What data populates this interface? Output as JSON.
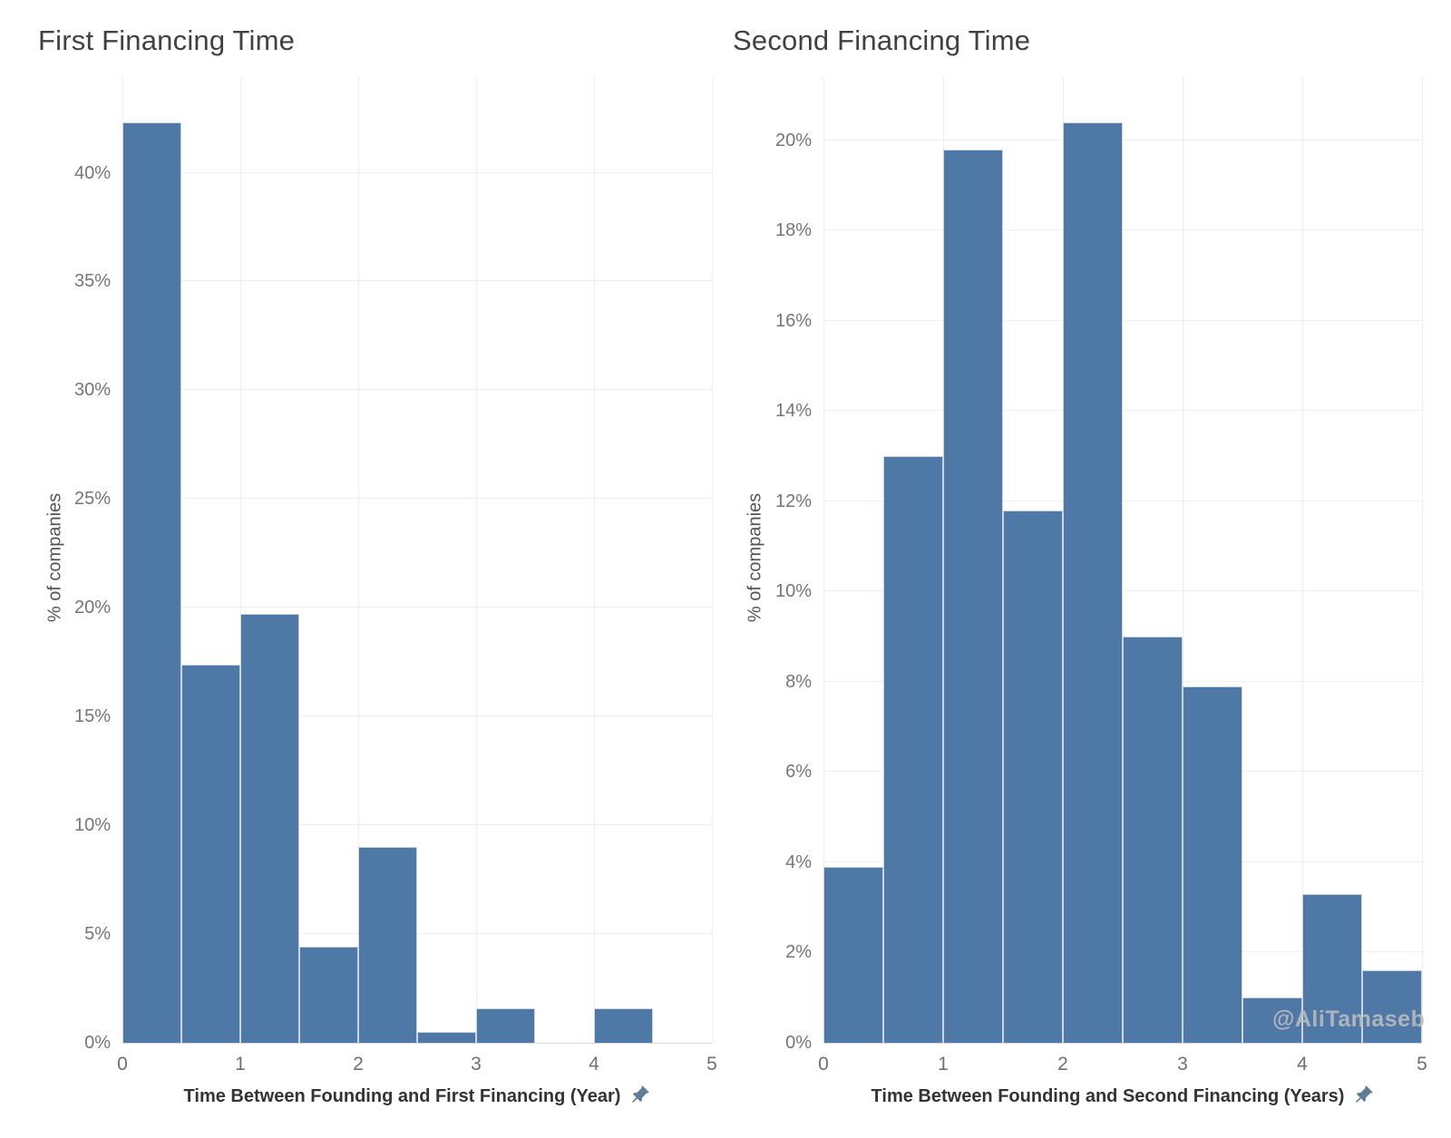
{
  "page_background": "#ffffff",
  "watermark": "@AliTamaseb",
  "colors": {
    "bar_fill": "#4e79a7",
    "bar_border": "#ccd5de",
    "gridline": "#efefef",
    "axis_line": "#d9d9d9",
    "title_text": "#414141",
    "tick_text": "#767676",
    "axis_title_text": "#333333",
    "watermark_text": "#bdbdbd",
    "pin_icon": "#5f7c99"
  },
  "chart_data": [
    {
      "type": "bar",
      "title": "First Financing Time",
      "xlabel": "Time Between Founding and First Financing (Year)",
      "ylabel": "% of companies",
      "bin_size_years": 0.5,
      "bin_edges": [
        0,
        0.5,
        1,
        1.5,
        2,
        2.5,
        3,
        3.5,
        4,
        4.5,
        5
      ],
      "categories": [
        "0-0.5",
        "0.5-1",
        "1-1.5",
        "1.5-2",
        "2-2.5",
        "2.5-3",
        "3-3.5",
        "3.5-4",
        "4-4.5",
        "4.5-5"
      ],
      "values": [
        42.3,
        17.4,
        19.7,
        4.4,
        9.0,
        0.5,
        1.6,
        0,
        1.6,
        0
      ],
      "value_unit": "%",
      "x_ticks": [
        "0",
        "1",
        "2",
        "3",
        "4",
        "5"
      ],
      "y_ticks": [
        0,
        5,
        10,
        15,
        20,
        25,
        30,
        35,
        40
      ],
      "y_tick_suffix": "%",
      "xlim": [
        0,
        5
      ],
      "ylim": [
        0,
        44.4
      ],
      "grid": true,
      "legend": "none"
    },
    {
      "type": "bar",
      "title": "Second Financing Time",
      "xlabel": "Time Between Founding and Second Financing (Years)",
      "ylabel": "% of companies",
      "bin_size_years": 0.5,
      "bin_edges": [
        0,
        0.5,
        1,
        1.5,
        2,
        2.5,
        3,
        3.5,
        4,
        4.5,
        5
      ],
      "categories": [
        "0-0.5",
        "0.5-1",
        "1-1.5",
        "1.5-2",
        "2-2.5",
        "2.5-3",
        "3-3.5",
        "3.5-4",
        "4-4.5",
        "4.5-5"
      ],
      "values": [
        3.9,
        13.0,
        19.8,
        11.8,
        20.4,
        9.0,
        7.9,
        1.0,
        3.3,
        1.6
      ],
      "value_unit": "%",
      "x_ticks": [
        "0",
        "1",
        "2",
        "3",
        "4",
        "5"
      ],
      "y_ticks": [
        0,
        2,
        4,
        6,
        8,
        10,
        12,
        14,
        16,
        18,
        20
      ],
      "y_tick_suffix": "%",
      "xlim": [
        0,
        5
      ],
      "ylim": [
        0,
        21.4
      ],
      "grid": true,
      "legend": "none"
    }
  ]
}
